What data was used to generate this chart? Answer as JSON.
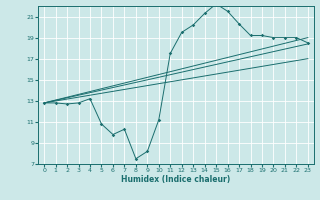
{
  "xlabel": "Humidex (Indice chaleur)",
  "bg_color": "#cce8e8",
  "grid_color": "#ffffff",
  "line_color": "#1a6e6e",
  "xlim": [
    -0.5,
    23.5
  ],
  "ylim": [
    7,
    22
  ],
  "xticks": [
    0,
    1,
    2,
    3,
    4,
    5,
    6,
    7,
    8,
    9,
    10,
    11,
    12,
    13,
    14,
    15,
    16,
    17,
    18,
    19,
    20,
    21,
    22,
    23
  ],
  "yticks": [
    7,
    9,
    11,
    13,
    15,
    17,
    19,
    21
  ],
  "curve1_x": [
    0,
    1,
    2,
    3,
    4,
    5,
    6,
    7,
    8,
    9,
    10,
    11,
    12,
    13,
    14,
    15,
    16,
    17,
    18,
    19,
    20,
    21,
    22,
    23
  ],
  "curve1_y": [
    12.8,
    12.8,
    12.7,
    12.8,
    13.2,
    10.8,
    9.8,
    10.3,
    7.5,
    8.2,
    11.2,
    17.5,
    19.5,
    20.2,
    21.3,
    22.2,
    21.5,
    20.3,
    19.2,
    19.2,
    19.0,
    19.0,
    19.0,
    18.5
  ],
  "line1_x": [
    0,
    23
  ],
  "line1_y": [
    12.8,
    19.0
  ],
  "line2_x": [
    0,
    23
  ],
  "line2_y": [
    12.8,
    18.4
  ],
  "line3_x": [
    0,
    23
  ],
  "line3_y": [
    12.8,
    17.0
  ]
}
